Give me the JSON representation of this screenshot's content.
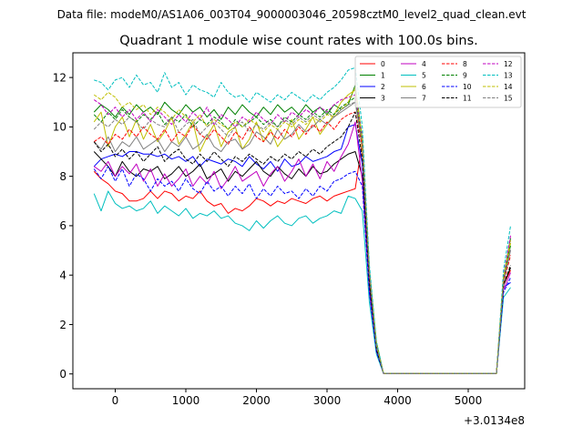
{
  "suptitle": "Data file: modeM0/AS1A06_003T04_9000003046_20598cztM0_level2_quad_clean.evt",
  "offset_label": "+3.0134e8",
  "chart_data": {
    "type": "line",
    "title": "Quadrant 1 module wise count rates with 100.0s bins.",
    "xlabel": "",
    "ylabel": "",
    "x_offset": 301340000,
    "xlim": [
      -600,
      5800
    ],
    "ylim": [
      -0.6,
      13.0
    ],
    "x_ticks": [
      0,
      1000,
      2000,
      3000,
      4000,
      5000
    ],
    "y_ticks": [
      0,
      2,
      4,
      6,
      8,
      10,
      12
    ],
    "legend_position": "top-right",
    "legend_columns": 4,
    "grid": false,
    "series": [
      {
        "name": "0",
        "color": "#ff0000",
        "dash": "solid",
        "values": [
          8.2,
          7.9,
          7.7,
          7.4,
          7.3,
          7.0,
          7.0,
          7.1,
          7.4,
          7.1,
          7.4,
          7.3,
          7.0,
          7.2,
          7.1,
          7.4,
          7.0,
          6.8,
          6.9,
          6.5,
          6.7,
          6.6,
          6.8,
          7.1,
          7.0,
          6.8,
          7.0,
          6.9,
          7.1,
          7.0,
          6.9,
          7.1,
          7.2,
          7.0,
          7.2,
          7.3,
          7.4,
          7.5,
          9.4,
          4.0,
          1.1,
          0.02,
          0.02,
          0.02,
          0.02,
          0.02,
          0.02,
          0.02,
          0.02,
          0.02,
          0.02,
          0.02,
          0.02,
          0.02,
          0.02,
          0.02,
          0.02,
          0.02,
          3.6,
          4.2
        ]
      },
      {
        "name": "1",
        "color": "#008000",
        "dash": "solid",
        "values": [
          10.6,
          10.9,
          10.7,
          10.4,
          10.8,
          10.5,
          10.9,
          10.6,
          10.8,
          10.5,
          11.0,
          10.7,
          10.5,
          10.9,
          10.6,
          10.8,
          10.4,
          10.7,
          10.3,
          10.8,
          10.5,
          10.9,
          10.6,
          10.4,
          10.8,
          10.5,
          10.9,
          10.6,
          10.8,
          10.5,
          10.9,
          10.6,
          10.8,
          10.5,
          10.9,
          10.7,
          10.9,
          11.7,
          9.5,
          4.2,
          1.3,
          0.02,
          0.02,
          0.02,
          0.02,
          0.02,
          0.02,
          0.02,
          0.02,
          0.02,
          0.02,
          0.02,
          0.02,
          0.02,
          0.02,
          0.02,
          0.02,
          0.02,
          3.9,
          5.5
        ]
      },
      {
        "name": "2",
        "color": "#0000ff",
        "dash": "solid",
        "values": [
          8.4,
          8.7,
          8.8,
          8.9,
          8.8,
          9.0,
          9.0,
          8.9,
          8.9,
          8.8,
          8.9,
          8.7,
          8.8,
          8.6,
          8.8,
          8.4,
          8.7,
          8.6,
          8.5,
          8.7,
          8.6,
          8.4,
          8.8,
          8.5,
          8.3,
          8.6,
          8.2,
          8.7,
          8.4,
          8.5,
          8.8,
          8.6,
          8.7,
          8.8,
          9.0,
          9.1,
          10.0,
          10.1,
          8.5,
          3.7,
          1.0,
          0.02,
          0.02,
          0.02,
          0.02,
          0.02,
          0.02,
          0.02,
          0.02,
          0.02,
          0.02,
          0.02,
          0.02,
          0.02,
          0.02,
          0.02,
          0.02,
          0.02,
          3.5,
          3.7
        ]
      },
      {
        "name": "3",
        "color": "#000000",
        "dash": "solid",
        "values": [
          9.0,
          8.7,
          8.4,
          8.0,
          8.6,
          8.2,
          8.0,
          8.3,
          8.2,
          8.4,
          7.9,
          8.1,
          8.4,
          8.0,
          8.2,
          8.5,
          7.9,
          8.1,
          8.3,
          7.8,
          8.2,
          8.0,
          8.3,
          8.6,
          8.2,
          8.0,
          8.4,
          8.1,
          7.9,
          8.3,
          8.0,
          8.4,
          8.1,
          8.2,
          8.5,
          8.7,
          8.9,
          9.0,
          8.0,
          3.5,
          1.0,
          0.02,
          0.02,
          0.02,
          0.02,
          0.02,
          0.02,
          0.02,
          0.02,
          0.02,
          0.02,
          0.02,
          0.02,
          0.02,
          0.02,
          0.02,
          0.02,
          0.02,
          3.6,
          4.3
        ]
      },
      {
        "name": "4",
        "color": "#c000c0",
        "dash": "solid",
        "values": [
          8.4,
          8.2,
          8.6,
          8.0,
          8.4,
          8.1,
          8.5,
          7.8,
          8.3,
          7.6,
          8.1,
          7.6,
          7.9,
          8.3,
          7.6,
          8.0,
          7.7,
          8.2,
          7.5,
          7.9,
          8.4,
          7.8,
          8.0,
          8.2,
          7.6,
          8.1,
          8.4,
          7.8,
          8.2,
          8.7,
          8.0,
          8.5,
          7.9,
          8.6,
          8.2,
          8.8,
          9.3,
          10.2,
          7.8,
          3.3,
          0.9,
          0.02,
          0.02,
          0.02,
          0.02,
          0.02,
          0.02,
          0.02,
          0.02,
          0.02,
          0.02,
          0.02,
          0.02,
          0.02,
          0.02,
          0.02,
          0.02,
          0.02,
          3.4,
          4.1
        ]
      },
      {
        "name": "5",
        "color": "#00bfbf",
        "dash": "solid",
        "values": [
          7.3,
          6.6,
          7.4,
          6.9,
          6.7,
          6.8,
          6.6,
          6.7,
          7.0,
          6.5,
          6.8,
          6.6,
          6.4,
          6.7,
          6.3,
          6.5,
          6.4,
          6.6,
          6.3,
          6.4,
          6.1,
          6.0,
          5.8,
          6.2,
          5.9,
          6.2,
          6.4,
          6.1,
          6.0,
          6.3,
          6.4,
          6.1,
          6.3,
          6.4,
          6.6,
          6.5,
          7.2,
          7.1,
          6.6,
          2.9,
          0.8,
          0.02,
          0.02,
          0.02,
          0.02,
          0.02,
          0.02,
          0.02,
          0.02,
          0.02,
          0.02,
          0.02,
          0.02,
          0.02,
          0.02,
          0.02,
          0.02,
          0.02,
          3.1,
          3.5
        ]
      },
      {
        "name": "6",
        "color": "#bfbf00",
        "dash": "solid",
        "values": [
          10.2,
          10.6,
          9.2,
          10.0,
          10.4,
          9.6,
          10.3,
          9.5,
          10.1,
          9.4,
          9.8,
          10.4,
          9.3,
          9.7,
          10.2,
          9.0,
          9.6,
          10.1,
          9.2,
          9.8,
          10.0,
          9.1,
          9.5,
          10.2,
          9.4,
          9.9,
          9.2,
          9.6,
          10.3,
          9.5,
          9.9,
          10.4,
          9.7,
          10.1,
          10.5,
          11.0,
          11.3,
          11.5,
          9.0,
          4.0,
          1.2,
          0.02,
          0.02,
          0.02,
          0.02,
          0.02,
          0.02,
          0.02,
          0.02,
          0.02,
          0.02,
          0.02,
          0.02,
          0.02,
          0.02,
          0.02,
          0.02,
          0.02,
          3.8,
          5.3
        ]
      },
      {
        "name": "7",
        "color": "#808080",
        "dash": "solid",
        "values": [
          9.4,
          9.1,
          9.6,
          9.0,
          9.4,
          9.2,
          9.6,
          9.1,
          9.3,
          9.5,
          9.0,
          9.4,
          9.2,
          9.6,
          9.1,
          9.3,
          9.7,
          9.2,
          9.0,
          9.4,
          9.5,
          9.1,
          9.3,
          9.8,
          9.6,
          9.3,
          9.9,
          9.5,
          9.7,
          10.1,
          9.8,
          10.0,
          10.3,
          10.1,
          10.4,
          10.6,
          10.8,
          11.0,
          9.2,
          4.0,
          1.1,
          0.02,
          0.02,
          0.02,
          0.02,
          0.02,
          0.02,
          0.02,
          0.02,
          0.02,
          0.02,
          0.02,
          0.02,
          0.02,
          0.02,
          0.02,
          0.02,
          0.02,
          3.7,
          5.0
        ]
      },
      {
        "name": "8",
        "color": "#ff0000",
        "dash": "dashed",
        "values": [
          9.4,
          9.6,
          9.3,
          9.7,
          9.5,
          9.9,
          9.6,
          10.0,
          9.7,
          9.5,
          9.9,
          9.4,
          9.8,
          9.6,
          10.1,
          9.7,
          9.5,
          9.9,
          9.6,
          9.3,
          9.8,
          9.5,
          10.0,
          9.6,
          9.4,
          9.8,
          9.5,
          9.9,
          9.6,
          10.0,
          9.7,
          10.1,
          9.8,
          10.2,
          9.9,
          10.3,
          10.5,
          10.6,
          9.2,
          3.9,
          1.1,
          0.02,
          0.02,
          0.02,
          0.02,
          0.02,
          0.02,
          0.02,
          0.02,
          0.02,
          0.02,
          0.02,
          0.02,
          0.02,
          0.02,
          0.02,
          0.02,
          0.02,
          3.7,
          4.8
        ]
      },
      {
        "name": "9",
        "color": "#008000",
        "dash": "dashed",
        "values": [
          10.5,
          10.2,
          10.6,
          10.3,
          10.7,
          10.4,
          10.2,
          10.5,
          10.3,
          10.6,
          10.1,
          10.4,
          10.2,
          10.5,
          10.0,
          10.3,
          10.1,
          10.4,
          10.2,
          9.9,
          10.3,
          10.0,
          10.2,
          10.4,
          10.1,
          10.3,
          10.0,
          10.4,
          10.2,
          10.5,
          10.3,
          10.6,
          10.4,
          10.7,
          10.5,
          10.8,
          11.0,
          11.2,
          9.4,
          4.1,
          1.2,
          0.02,
          0.02,
          0.02,
          0.02,
          0.02,
          0.02,
          0.02,
          0.02,
          0.02,
          0.02,
          0.02,
          0.02,
          0.02,
          0.02,
          0.02,
          0.02,
          0.02,
          3.8,
          5.2
        ]
      },
      {
        "name": "10",
        "color": "#0000ff",
        "dash": "dashed",
        "values": [
          8.3,
          7.9,
          8.4,
          7.8,
          8.3,
          7.6,
          8.1,
          7.9,
          7.4,
          7.9,
          7.6,
          7.8,
          7.4,
          7.9,
          7.5,
          7.3,
          7.8,
          7.4,
          7.6,
          7.2,
          7.6,
          7.3,
          7.7,
          7.1,
          7.5,
          7.2,
          7.6,
          7.3,
          7.4,
          7.1,
          7.5,
          7.2,
          7.6,
          7.4,
          7.8,
          7.9,
          8.1,
          8.2,
          7.6,
          3.3,
          0.9,
          0.02,
          0.02,
          0.02,
          0.02,
          0.02,
          0.02,
          0.02,
          0.02,
          0.02,
          0.02,
          0.02,
          0.02,
          0.02,
          0.02,
          0.02,
          0.02,
          0.02,
          3.3,
          3.9
        ]
      },
      {
        "name": "11",
        "color": "#000000",
        "dash": "dashed",
        "values": [
          9.4,
          9.0,
          9.3,
          8.8,
          9.1,
          8.7,
          9.0,
          8.6,
          8.9,
          9.2,
          8.6,
          8.9,
          9.1,
          8.7,
          8.5,
          8.9,
          8.6,
          9.0,
          8.7,
          8.4,
          8.8,
          8.6,
          8.9,
          8.7,
          8.5,
          8.8,
          8.6,
          8.9,
          8.7,
          9.0,
          8.8,
          9.1,
          8.9,
          9.2,
          9.4,
          9.6,
          10.0,
          10.6,
          8.7,
          3.7,
          1.0,
          0.02,
          0.02,
          0.02,
          0.02,
          0.02,
          0.02,
          0.02,
          0.02,
          0.02,
          0.02,
          0.02,
          0.02,
          0.02,
          0.02,
          0.02,
          0.02,
          0.02,
          3.6,
          4.4
        ]
      },
      {
        "name": "12",
        "color": "#c000c0",
        "dash": "dashed",
        "values": [
          11.1,
          10.9,
          10.5,
          10.8,
          10.4,
          10.7,
          10.3,
          10.6,
          10.2,
          10.7,
          10.4,
          10.1,
          10.5,
          10.2,
          10.6,
          10.3,
          10.8,
          10.1,
          10.5,
          10.3,
          10.0,
          10.4,
          10.2,
          10.6,
          10.3,
          10.1,
          10.5,
          10.2,
          10.6,
          10.4,
          10.7,
          10.5,
          10.8,
          10.6,
          10.9,
          11.1,
          11.2,
          11.3,
          9.6,
          4.2,
          1.2,
          0.02,
          0.02,
          0.02,
          0.02,
          0.02,
          0.02,
          0.02,
          0.02,
          0.02,
          0.02,
          0.02,
          0.02,
          0.02,
          0.02,
          0.02,
          0.02,
          0.02,
          3.9,
          5.6
        ]
      },
      {
        "name": "13",
        "color": "#00bfbf",
        "dash": "dashed",
        "values": [
          11.9,
          11.8,
          11.5,
          11.9,
          12.0,
          11.6,
          12.1,
          11.7,
          11.8,
          11.4,
          12.2,
          11.6,
          11.8,
          11.3,
          11.7,
          11.5,
          11.4,
          11.2,
          11.8,
          11.4,
          11.2,
          11.3,
          11.0,
          11.4,
          11.2,
          11.0,
          11.3,
          11.1,
          11.4,
          11.2,
          11.0,
          11.3,
          11.1,
          11.4,
          11.6,
          11.9,
          12.3,
          12.4,
          10.0,
          4.4,
          1.3,
          0.02,
          0.02,
          0.02,
          0.02,
          0.02,
          0.02,
          0.02,
          0.02,
          0.02,
          0.02,
          0.02,
          0.02,
          0.02,
          0.02,
          0.02,
          0.02,
          0.02,
          4.2,
          6.0
        ]
      },
      {
        "name": "14",
        "color": "#bfbf00",
        "dash": "dashed",
        "values": [
          11.3,
          11.1,
          11.4,
          11.2,
          10.8,
          11.0,
          10.7,
          10.9,
          10.5,
          10.8,
          10.6,
          10.3,
          10.7,
          10.4,
          10.2,
          10.5,
          10.0,
          10.3,
          10.1,
          9.9,
          10.2,
          10.0,
          10.3,
          10.1,
          9.8,
          10.1,
          9.9,
          10.2,
          10.0,
          10.3,
          10.1,
          10.4,
          10.2,
          10.5,
          10.4,
          10.7,
          11.0,
          11.6,
          9.5,
          4.1,
          1.2,
          0.02,
          0.02,
          0.02,
          0.02,
          0.02,
          0.02,
          0.02,
          0.02,
          0.02,
          0.02,
          0.02,
          0.02,
          0.02,
          0.02,
          0.02,
          0.02,
          0.02,
          3.9,
          5.4
        ]
      },
      {
        "name": "15",
        "color": "#808080",
        "dash": "dashed",
        "values": [
          9.9,
          10.2,
          10.0,
          10.3,
          10.1,
          10.4,
          10.2,
          9.9,
          10.3,
          10.1,
          10.0,
          10.4,
          9.8,
          10.1,
          10.3,
          9.7,
          10.0,
          10.2,
          9.9,
          9.6,
          10.0,
          10.2,
          9.8,
          10.1,
          9.9,
          10.2,
          10.0,
          10.3,
          10.1,
          10.4,
          10.2,
          10.5,
          10.3,
          10.6,
          10.4,
          10.7,
          10.9,
          11.0,
          9.3,
          4.0,
          1.1,
          0.02,
          0.02,
          0.02,
          0.02,
          0.02,
          0.02,
          0.02,
          0.02,
          0.02,
          0.02,
          0.02,
          0.02,
          0.02,
          0.02,
          0.02,
          0.02,
          0.02,
          3.7,
          5.1
        ]
      }
    ]
  }
}
